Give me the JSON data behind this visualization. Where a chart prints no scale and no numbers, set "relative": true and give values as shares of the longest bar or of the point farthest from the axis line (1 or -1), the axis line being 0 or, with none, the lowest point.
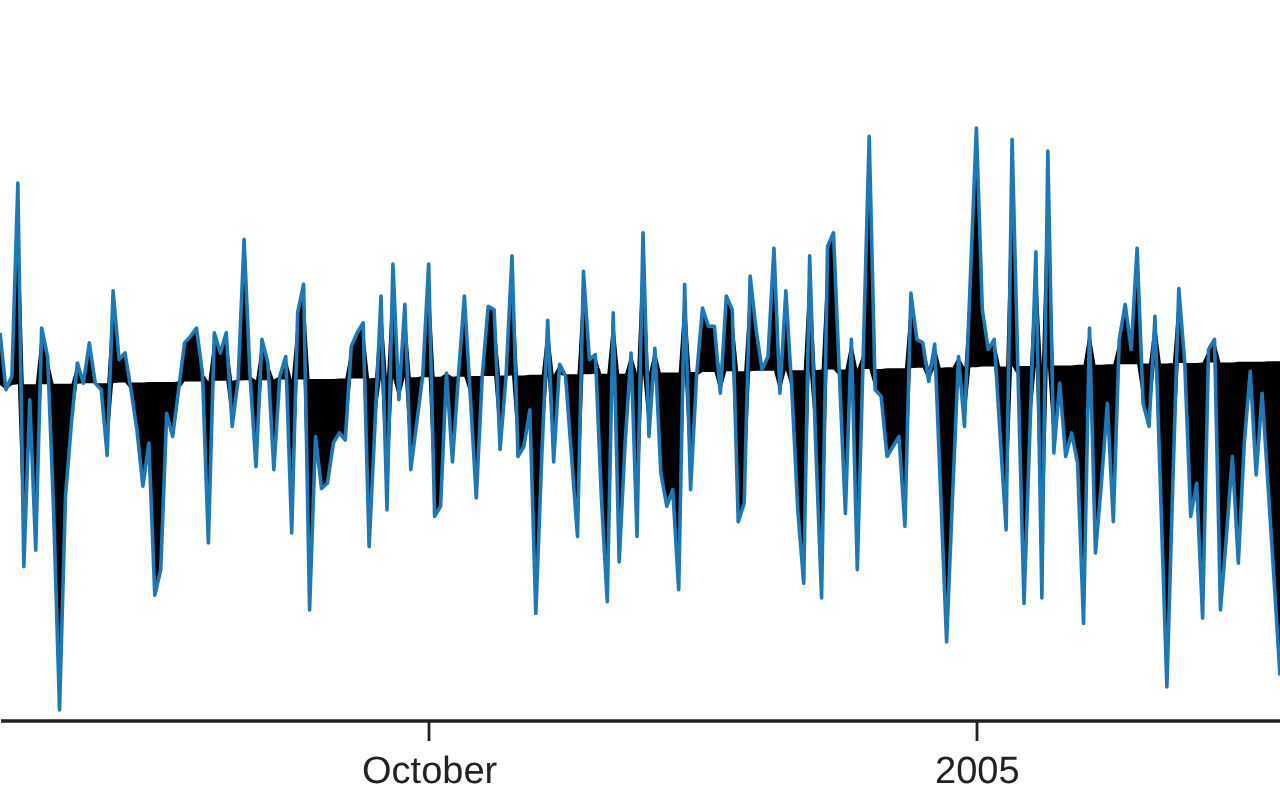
{
  "chart_data": {
    "type": "line",
    "relative": true,
    "x": [
      "2004-07-21",
      "2004-07-22",
      "2004-07-23",
      "2004-07-24",
      "2004-07-25",
      "2004-07-26",
      "2004-07-27",
      "2004-07-28",
      "2004-07-29",
      "2004-07-30",
      "2004-07-31",
      "2004-08-01",
      "2004-08-02",
      "2004-08-03",
      "2004-08-04",
      "2004-08-05",
      "2004-08-06",
      "2004-08-07",
      "2004-08-08",
      "2004-08-09",
      "2004-08-10",
      "2004-08-11",
      "2004-08-12",
      "2004-08-13",
      "2004-08-14",
      "2004-08-15",
      "2004-08-16",
      "2004-08-17",
      "2004-08-18",
      "2004-08-19",
      "2004-08-20",
      "2004-08-21",
      "2004-08-22",
      "2004-08-23",
      "2004-08-24",
      "2004-08-25",
      "2004-08-26",
      "2004-08-27",
      "2004-08-28",
      "2004-08-29",
      "2004-08-30",
      "2004-08-31",
      "2004-09-01",
      "2004-09-02",
      "2004-09-03",
      "2004-09-04",
      "2004-09-05",
      "2004-09-06",
      "2004-09-07",
      "2004-09-08",
      "2004-09-09",
      "2004-09-10",
      "2004-09-11",
      "2004-09-12",
      "2004-09-13",
      "2004-09-14",
      "2004-09-15",
      "2004-09-16",
      "2004-09-17",
      "2004-09-18",
      "2004-09-19",
      "2004-09-20",
      "2004-09-21",
      "2004-09-22",
      "2004-09-23",
      "2004-09-24",
      "2004-09-25",
      "2004-09-26",
      "2004-09-27",
      "2004-09-28",
      "2004-09-29",
      "2004-09-30",
      "2004-10-01",
      "2004-10-02",
      "2004-10-03",
      "2004-10-04",
      "2004-10-05",
      "2004-10-06",
      "2004-10-07",
      "2004-10-08",
      "2004-10-09",
      "2004-10-10",
      "2004-10-11",
      "2004-10-12",
      "2004-10-13",
      "2004-10-14",
      "2004-10-15",
      "2004-10-16",
      "2004-10-17",
      "2004-10-18",
      "2004-10-19",
      "2004-10-20",
      "2004-10-21",
      "2004-10-22",
      "2004-10-23",
      "2004-10-24",
      "2004-10-25",
      "2004-10-26",
      "2004-10-27",
      "2004-10-28",
      "2004-10-29",
      "2004-10-30",
      "2004-10-31",
      "2004-11-01",
      "2004-11-02",
      "2004-11-03",
      "2004-11-04",
      "2004-11-05",
      "2004-11-06",
      "2004-11-07",
      "2004-11-08",
      "2004-11-09",
      "2004-11-10",
      "2004-11-11",
      "2004-11-12",
      "2004-11-13",
      "2004-11-14",
      "2004-11-15",
      "2004-11-16",
      "2004-11-17",
      "2004-11-18",
      "2004-11-19",
      "2004-11-20",
      "2004-11-21",
      "2004-11-22",
      "2004-11-23",
      "2004-11-24",
      "2004-11-25",
      "2004-11-26",
      "2004-11-27",
      "2004-11-28",
      "2004-11-29",
      "2004-11-30",
      "2004-12-01",
      "2004-12-02",
      "2004-12-03",
      "2004-12-04",
      "2004-12-05",
      "2004-12-06",
      "2004-12-07",
      "2004-12-08",
      "2004-12-09",
      "2004-12-10",
      "2004-12-11",
      "2004-12-12",
      "2004-12-13",
      "2004-12-14",
      "2004-12-15",
      "2004-12-16",
      "2004-12-17",
      "2004-12-18",
      "2004-12-19",
      "2004-12-20",
      "2004-12-21",
      "2004-12-22",
      "2004-12-23",
      "2004-12-24",
      "2004-12-25",
      "2004-12-26",
      "2004-12-27",
      "2004-12-28",
      "2004-12-29",
      "2004-12-30",
      "2004-12-31",
      "2005-01-01",
      "2005-01-02",
      "2005-01-03",
      "2005-01-04",
      "2005-01-05",
      "2005-01-06",
      "2005-01-07",
      "2005-01-08",
      "2005-01-09",
      "2005-01-10",
      "2005-01-11",
      "2005-01-12",
      "2005-01-13",
      "2005-01-14",
      "2005-01-15",
      "2005-01-16",
      "2005-01-17",
      "2005-01-18",
      "2005-01-19",
      "2005-01-20",
      "2005-01-21",
      "2005-01-22",
      "2005-01-23",
      "2005-01-24",
      "2005-01-25",
      "2005-01-26",
      "2005-01-27",
      "2005-01-28",
      "2005-01-29",
      "2005-01-30",
      "2005-01-31",
      "2005-02-01",
      "2005-02-02",
      "2005-02-03",
      "2005-02-04",
      "2005-02-05",
      "2005-02-06",
      "2005-02-07",
      "2005-02-08",
      "2005-02-09",
      "2005-02-10",
      "2005-02-11",
      "2005-02-12",
      "2005-02-13",
      "2005-02-14",
      "2005-02-15",
      "2005-02-16",
      "2005-02-17",
      "2005-02-18",
      "2005-02-19",
      "2005-02-20",
      "2005-02-21"
    ],
    "xlim": [
      "2004-07-21",
      "2005-02-21"
    ],
    "xticks": [
      {
        "value": "2004-10-01",
        "label": "October"
      },
      {
        "value": "2005-01-01",
        "label": "2005"
      }
    ],
    "series": [
      {
        "color": "#1f77b4",
        "values": [
          0.654,
          0.558,
          0.581,
          0.907,
          0.259,
          0.541,
          0.287,
          0.662,
          0.614,
          0.355,
          0.017,
          0.378,
          0.502,
          0.603,
          0.569,
          0.637,
          0.569,
          0.558,
          0.447,
          0.725,
          0.609,
          0.62,
          0.558,
          0.49,
          0.395,
          0.468,
          0.211,
          0.254,
          0.518,
          0.479,
          0.558,
          0.637,
          0.648,
          0.662,
          0.586,
          0.299,
          0.654,
          0.62,
          0.654,
          0.496,
          0.575,
          0.812,
          0.581,
          0.428,
          0.643,
          0.603,
          0.423,
          0.581,
          0.614,
          0.316,
          0.688,
          0.736,
          0.186,
          0.479,
          0.391,
          0.4,
          0.468,
          0.485,
          0.473,
          0.631,
          0.654,
          0.671,
          0.293,
          0.502,
          0.716,
          0.355,
          0.77,
          0.541,
          0.702,
          0.423,
          0.502,
          0.581,
          0.77,
          0.344,
          0.361,
          0.586,
          0.436,
          0.581,
          0.716,
          0.547,
          0.375,
          0.581,
          0.699,
          0.693,
          0.457,
          0.581,
          0.784,
          0.445,
          0.462,
          0.524,
          0.18,
          0.445,
          0.675,
          0.436,
          0.601,
          0.581,
          0.445,
          0.31,
          0.758,
          0.609,
          0.617,
          0.378,
          0.2,
          0.688,
          0.267,
          0.468,
          0.62,
          0.31,
          0.823,
          0.479,
          0.628,
          0.417,
          0.361,
          0.389,
          0.22,
          0.736,
          0.389,
          0.581,
          0.696,
          0.665,
          0.665,
          0.552,
          0.716,
          0.693,
          0.335,
          0.366,
          0.75,
          0.659,
          0.592,
          0.614,
          0.797,
          0.552,
          0.725,
          0.558,
          0.355,
          0.231,
          0.784,
          0.468,
          0.206,
          0.8,
          0.823,
          0.581,
          0.349,
          0.643,
          0.254,
          0.62,
          0.986,
          0.558,
          0.547,
          0.445,
          0.462,
          0.479,
          0.327,
          0.721,
          0.643,
          0.637,
          0.572,
          0.635,
          0.383,
          0.132,
          0.378,
          0.614,
          0.496,
          0.75,
          1,
          0.693,
          0.626,
          0.643,
          0.479,
          0.321,
          0.981,
          0.581,
          0.197,
          0.49,
          0.791,
          0.206,
          0.961,
          0.451,
          0.569,
          0.445,
          0.485,
          0.434,
          0.163,
          0.662,
          0.282,
          0.4,
          0.535,
          0.335,
          0.643,
          0.702,
          0.626,
          0.797,
          0.535,
          0.496,
          0.682,
          0.366,
          0.056,
          0.4,
          0.729,
          0.603,
          0.344,
          0.4,
          0.172,
          0.626,
          0.643,
          0.186,
          0.31,
          0.445,
          0.265,
          0.468,
          0.589,
          0.414,
          0.552,
          0.395,
          0.237,
          0.075
        ],
        "lower": [
          0.566,
          0.558,
          0.566,
          0.567,
          0.259,
          0.541,
          0.287,
          0.567,
          0.567,
          0.355,
          0.017,
          0.378,
          0.502,
          0.568,
          0.569,
          0.569,
          0.569,
          0.558,
          0.447,
          0.569,
          0.57,
          0.57,
          0.558,
          0.49,
          0.395,
          0.468,
          0.211,
          0.254,
          0.518,
          0.479,
          0.558,
          0.572,
          0.572,
          0.572,
          0.572,
          0.299,
          0.573,
          0.573,
          0.573,
          0.496,
          0.573,
          0.574,
          0.574,
          0.428,
          0.574,
          0.574,
          0.423,
          0.575,
          0.575,
          0.316,
          0.575,
          0.575,
          0.186,
          0.479,
          0.391,
          0.4,
          0.468,
          0.485,
          0.473,
          0.577,
          0.577,
          0.577,
          0.293,
          0.502,
          0.578,
          0.355,
          0.578,
          0.541,
          0.579,
          0.423,
          0.502,
          0.579,
          0.579,
          0.344,
          0.361,
          0.58,
          0.436,
          0.58,
          0.58,
          0.547,
          0.375,
          0.581,
          0.581,
          0.581,
          0.457,
          0.581,
          0.582,
          0.445,
          0.462,
          0.524,
          0.18,
          0.445,
          0.583,
          0.436,
          0.583,
          0.581,
          0.445,
          0.31,
          0.584,
          0.584,
          0.585,
          0.378,
          0.2,
          0.585,
          0.267,
          0.468,
          0.586,
          0.31,
          0.586,
          0.479,
          0.586,
          0.417,
          0.361,
          0.389,
          0.22,
          0.587,
          0.389,
          0.581,
          0.588,
          0.588,
          0.588,
          0.552,
          0.589,
          0.589,
          0.335,
          0.366,
          0.589,
          0.59,
          0.59,
          0.59,
          0.59,
          0.552,
          0.591,
          0.558,
          0.355,
          0.231,
          0.591,
          0.468,
          0.206,
          0.592,
          0.592,
          0.581,
          0.349,
          0.593,
          0.254,
          0.593,
          0.593,
          0.558,
          0.547,
          0.445,
          0.462,
          0.479,
          0.327,
          0.594,
          0.595,
          0.595,
          0.572,
          0.595,
          0.383,
          0.132,
          0.378,
          0.596,
          0.496,
          0.596,
          0.596,
          0.597,
          0.597,
          0.597,
          0.479,
          0.321,
          0.598,
          0.581,
          0.197,
          0.49,
          0.598,
          0.206,
          0.599,
          0.451,
          0.569,
          0.445,
          0.485,
          0.434,
          0.163,
          0.6,
          0.282,
          0.4,
          0.535,
          0.335,
          0.601,
          0.601,
          0.601,
          0.601,
          0.535,
          0.496,
          0.602,
          0.366,
          0.056,
          0.4,
          0.603,
          0.603,
          0.344,
          0.4,
          0.172,
          0.604,
          0.604,
          0.186,
          0.31,
          0.445,
          0.265,
          0.468,
          0.589,
          0.414,
          0.552,
          0.395,
          0.237,
          0.075
        ],
        "upper": [
          0.654,
          0.566,
          0.581,
          0.907,
          0.567,
          0.567,
          0.567,
          0.662,
          0.614,
          0.568,
          0.568,
          0.568,
          0.568,
          0.603,
          0.569,
          0.637,
          0.569,
          0.569,
          0.569,
          0.725,
          0.609,
          0.62,
          0.57,
          0.57,
          0.57,
          0.571,
          0.571,
          0.571,
          0.571,
          0.571,
          0.572,
          0.637,
          0.648,
          0.662,
          0.586,
          0.572,
          0.654,
          0.62,
          0.654,
          0.573,
          0.575,
          0.812,
          0.581,
          0.574,
          0.643,
          0.603,
          0.575,
          0.581,
          0.614,
          0.575,
          0.688,
          0.736,
          0.576,
          0.576,
          0.576,
          0.576,
          0.576,
          0.577,
          0.577,
          0.631,
          0.654,
          0.671,
          0.577,
          0.578,
          0.716,
          0.578,
          0.77,
          0.578,
          0.702,
          0.579,
          0.579,
          0.581,
          0.77,
          0.58,
          0.58,
          0.586,
          0.58,
          0.581,
          0.716,
          0.581,
          0.581,
          0.581,
          0.699,
          0.693,
          0.582,
          0.582,
          0.784,
          0.582,
          0.582,
          0.583,
          0.583,
          0.583,
          0.675,
          0.583,
          0.601,
          0.584,
          0.584,
          0.584,
          0.758,
          0.609,
          0.617,
          0.585,
          0.585,
          0.688,
          0.585,
          0.585,
          0.62,
          0.586,
          0.823,
          0.586,
          0.628,
          0.587,
          0.587,
          0.587,
          0.587,
          0.736,
          0.588,
          0.588,
          0.696,
          0.665,
          0.665,
          0.588,
          0.716,
          0.693,
          0.589,
          0.589,
          0.75,
          0.659,
          0.592,
          0.614,
          0.797,
          0.59,
          0.725,
          0.591,
          0.591,
          0.591,
          0.784,
          0.591,
          0.592,
          0.8,
          0.823,
          0.592,
          0.592,
          0.643,
          0.593,
          0.62,
          0.986,
          0.593,
          0.593,
          0.594,
          0.594,
          0.594,
          0.594,
          0.721,
          0.643,
          0.637,
          0.595,
          0.635,
          0.595,
          0.596,
          0.596,
          0.614,
          0.596,
          0.75,
          1,
          0.693,
          0.626,
          0.643,
          0.597,
          0.597,
          0.981,
          0.598,
          0.598,
          0.598,
          0.791,
          0.599,
          0.961,
          0.599,
          0.599,
          0.599,
          0.599,
          0.6,
          0.6,
          0.662,
          0.6,
          0.6,
          0.601,
          0.601,
          0.643,
          0.702,
          0.626,
          0.797,
          0.602,
          0.602,
          0.682,
          0.602,
          0.602,
          0.603,
          0.729,
          0.603,
          0.603,
          0.603,
          0.604,
          0.626,
          0.643,
          0.604,
          0.604,
          0.604,
          0.605,
          0.605,
          0.605,
          0.605,
          0.605,
          0.606,
          0.606,
          0.606
        ]
      }
    ]
  }
}
